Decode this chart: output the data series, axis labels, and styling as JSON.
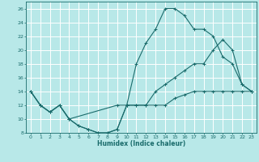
{
  "xlabel": "Humidex (Indice chaleur)",
  "bg_color": "#b8e8e8",
  "line_color": "#1a6b6b",
  "grid_color": "#ffffff",
  "xlim": [
    -0.5,
    23.5
  ],
  "ylim": [
    8,
    27
  ],
  "xticks": [
    0,
    1,
    2,
    3,
    4,
    5,
    6,
    7,
    8,
    9,
    10,
    11,
    12,
    13,
    14,
    15,
    16,
    17,
    18,
    19,
    20,
    21,
    22,
    23
  ],
  "yticks": [
    8,
    10,
    12,
    14,
    16,
    18,
    20,
    22,
    24,
    26
  ],
  "line1_x": [
    0,
    1,
    2,
    3,
    4,
    5,
    6,
    7,
    8,
    9,
    10,
    11,
    12,
    13,
    14,
    15,
    16,
    17,
    18,
    19,
    20,
    21,
    22,
    23
  ],
  "line1_y": [
    14,
    12,
    11,
    12,
    10,
    9,
    8.5,
    8,
    8,
    8.5,
    12,
    12,
    12,
    12,
    12,
    13,
    13.5,
    14,
    14,
    14,
    14,
    14,
    14,
    14
  ],
  "line2_x": [
    0,
    1,
    2,
    3,
    4,
    5,
    6,
    7,
    8,
    9,
    10,
    11,
    12,
    13,
    14,
    15,
    16,
    17,
    18,
    19,
    20,
    21,
    22,
    23
  ],
  "line2_y": [
    14,
    12,
    11,
    12,
    10,
    9,
    8.5,
    8,
    8,
    8.5,
    12,
    18,
    21,
    23,
    26,
    26,
    25,
    23,
    23,
    22,
    19,
    18,
    15,
    14
  ],
  "line3_x": [
    0,
    1,
    2,
    3,
    4,
    9,
    10,
    11,
    12,
    13,
    14,
    15,
    16,
    17,
    18,
    19,
    20,
    21,
    22,
    23
  ],
  "line3_y": [
    14,
    12,
    11,
    12,
    10,
    12,
    12,
    12,
    12,
    14,
    15,
    16,
    17,
    18,
    18,
    20,
    21.5,
    20,
    15,
    14
  ]
}
